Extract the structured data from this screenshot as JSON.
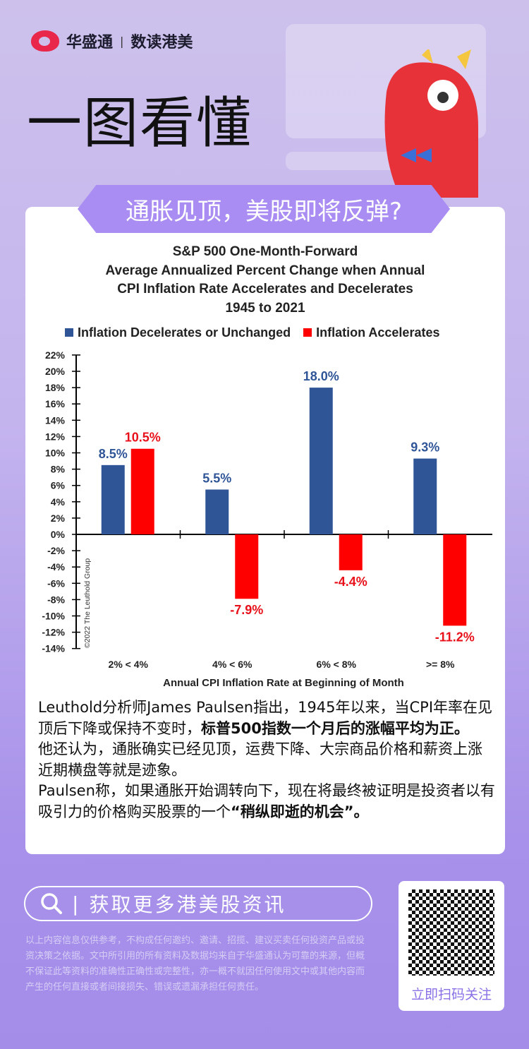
{
  "header": {
    "brand": "华盛通",
    "divider": "|",
    "column": "数读港美",
    "title": "一图看懂",
    "headline": "通胀见顶，美股即将反弹?"
  },
  "chart_data": {
    "type": "bar",
    "title_lines": [
      "S&P 500 One-Month-Forward",
      "Average Annualized Percent Change when Annual",
      "CPI Inflation Rate Accelerates and Decelerates",
      "1945 to 2021"
    ],
    "categories": [
      "2% < 4%",
      "4% < 6%",
      "6% < 8%",
      ">= 8%"
    ],
    "series": [
      {
        "name": "Inflation Decelerates or Unchanged",
        "color": "#2f5597",
        "values": [
          8.5,
          5.5,
          18.0,
          9.3
        ],
        "labels": [
          "8.5%",
          "5.5%",
          "18.0%",
          "9.3%"
        ]
      },
      {
        "name": "Inflation Accelerates",
        "color": "#ff0000",
        "values": [
          10.5,
          -7.9,
          -4.4,
          -11.2
        ],
        "labels": [
          "10.5%",
          "-7.9%",
          "-4.4%",
          "-11.2%"
        ]
      }
    ],
    "label_colors": [
      "#2f5597",
      "#e8101a"
    ],
    "xlabel": "Annual CPI Inflation Rate at Beginning of Month",
    "ylabel": "",
    "ylim": [
      -14,
      22
    ],
    "yticks": [
      "22%",
      "20%",
      "18%",
      "16%",
      "14%",
      "12%",
      "10%",
      "8%",
      "6%",
      "4%",
      "2%",
      "0%",
      "-2%",
      "-4%",
      "-6%",
      "-8%",
      "-10%",
      "-12%",
      "-14%"
    ],
    "copyright": "©2022 The Leuthold Group",
    "legend_position": "top"
  },
  "body": {
    "p1_a": "Leuthold分析师James Paulsen指出，1945年以来，当CPI年率在见顶后下降或保持不变时，",
    "p1_b": "标普500指数一个月后的涨幅平均为正。",
    "p2": "他还认为，通胀确实已经见顶，运费下降、大宗商品价格和薪资上涨近期横盘等就是迹象。",
    "p3_a": "Paulsen称，如果通胀开始调转向下，现在将最终被证明是投资者以有吸引力的价格购买股票的一个",
    "p3_b": "“稍纵即逝的机会”",
    "p3_c": "。"
  },
  "footer": {
    "cta": "获取更多港美股资讯",
    "cta_sep": "|",
    "disclaimer": "以上内容信息仅供参考，不构成任何邀约、邀请、招揽、建议买卖任何投资产品或投资决策之依据。文中所引用的所有资料及数据均来自于华盛通认为可靠的来源，但概不保证此等资料的准确性正确性或完整性，亦一概不就因任何使用文中或其他内容而产生的任何直接或者间接损失、错误或遗漏承担任何责任。",
    "qr_label": "立即扫码关注"
  }
}
